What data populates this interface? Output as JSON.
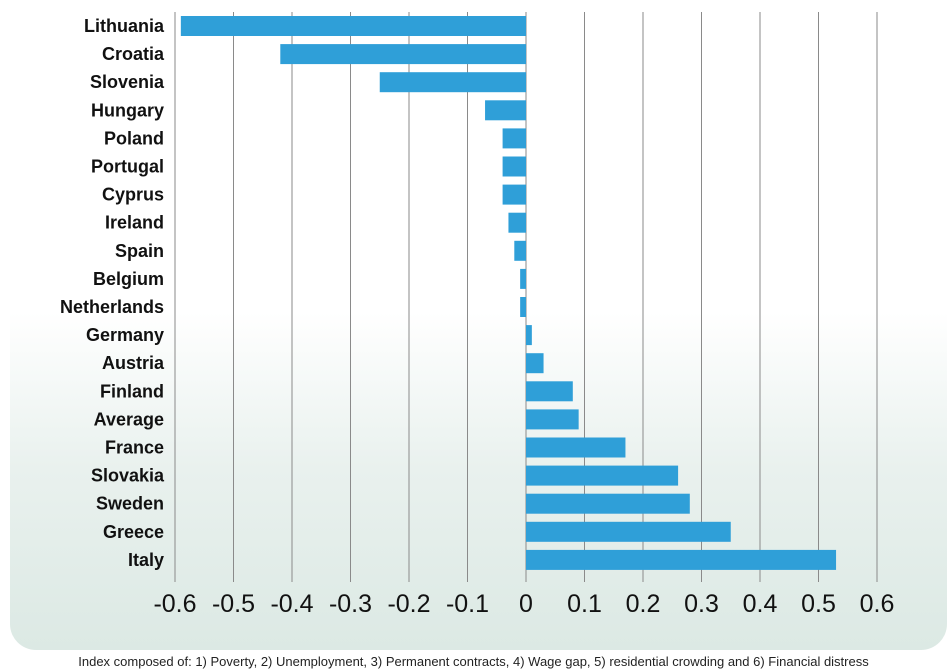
{
  "chart_data": {
    "type": "bar",
    "orientation": "horizontal",
    "categories": [
      "Lithuania",
      "Croatia",
      "Slovenia",
      "Hungary",
      "Poland",
      "Portugal",
      "Cyprus",
      "Ireland",
      "Spain",
      "Belgium",
      "Netherlands",
      "Germany",
      "Austria",
      "Finland",
      "Average",
      "France",
      "Slovakia",
      "Sweden",
      "Greece",
      "Italy"
    ],
    "values": [
      -0.59,
      -0.42,
      -0.25,
      -0.07,
      -0.04,
      -0.04,
      -0.04,
      -0.03,
      -0.02,
      -0.01,
      -0.01,
      0.01,
      0.03,
      0.08,
      0.09,
      0.17,
      0.26,
      0.28,
      0.35,
      0.53
    ],
    "xlim": [
      -0.6,
      0.6
    ],
    "xticks": [
      "-0.6",
      "-0.5",
      "-0.4",
      "-0.3",
      "-0.2",
      "-0.1",
      "0",
      "0.1",
      "0.2",
      "0.3",
      "0.4",
      "0.5",
      "0.6"
    ],
    "grid": "vertical",
    "bar_color": "#2f9fd8",
    "caption": "Index composed of: 1) Poverty, 2) Unemployment, 3) Permanent contracts, 4) Wage gap, 5) residential crowding and 6) Financial distress"
  }
}
